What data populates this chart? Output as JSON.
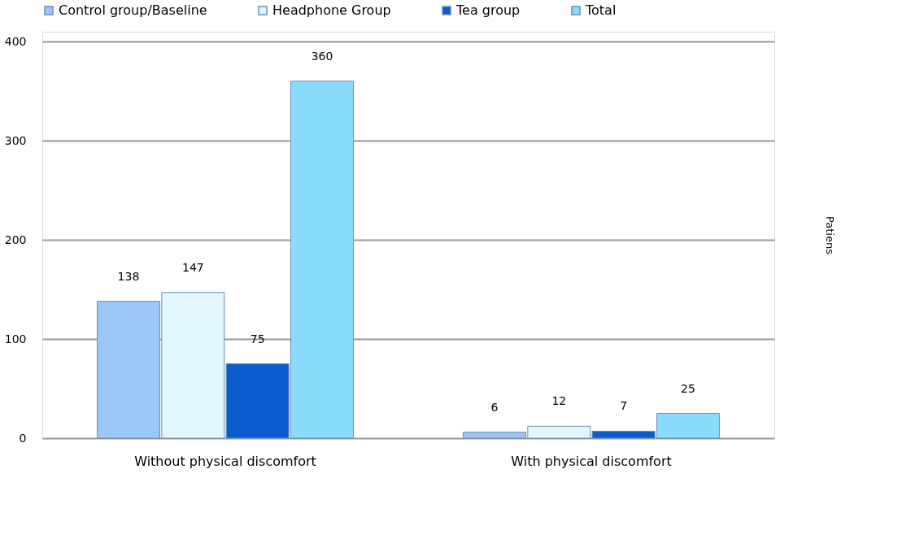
{
  "chart_data": {
    "type": "bar",
    "categories": [
      "Without physical discomfort",
      "With physical discomfort"
    ],
    "series": [
      {
        "name": "Control group/Baseline",
        "color": "#9cc6f6",
        "values": [
          138,
          6
        ]
      },
      {
        "name": "Headphone Group",
        "color": "#e2f8ff",
        "values": [
          147,
          12
        ]
      },
      {
        "name": "Tea group",
        "color": "#0a5ccf",
        "values": [
          75,
          7
        ]
      },
      {
        "name": "Total",
        "color": "#8adcfc",
        "values": [
          360,
          25
        ]
      }
    ],
    "ylabel": "Patiens",
    "ylim": [
      0,
      410
    ],
    "yticks": [
      0,
      100,
      200,
      300,
      400
    ],
    "grid": "y",
    "legend": "top",
    "data_labels": true
  }
}
